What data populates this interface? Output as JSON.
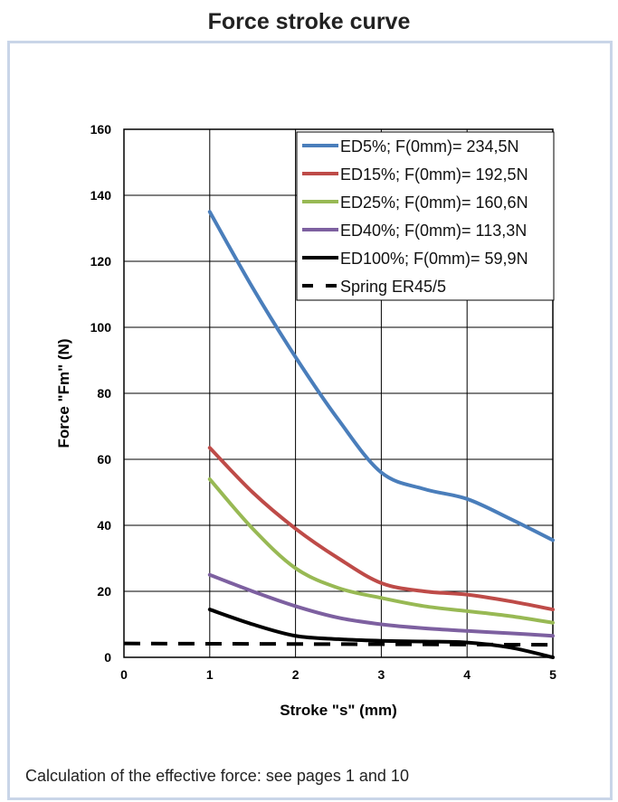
{
  "title": "Force stroke curve",
  "footer": "Calculation of the effective force: see pages 1 and 10",
  "chart_data": {
    "type": "line",
    "xlabel": "Stroke \"s\" (mm)",
    "ylabel": "Force \"Fm\" (N)",
    "xlim": [
      0,
      5
    ],
    "ylim": [
      0,
      160
    ],
    "xticks": [
      "0",
      "1",
      "2",
      "3",
      "4",
      "5"
    ],
    "yticks": [
      "0",
      "20",
      "40",
      "60",
      "80",
      "100",
      "120",
      "140",
      "160"
    ],
    "grid": true,
    "legend": "top-right",
    "x": [
      1,
      1.5,
      2,
      2.5,
      3,
      3.5,
      4,
      4.5,
      5
    ],
    "series": [
      {
        "name": "ED5%; F(0mm)= 234,5N",
        "color": "#4a7ebb",
        "values": [
          135,
          112,
          91,
          72,
          56,
          51,
          48,
          42,
          35.5
        ]
      },
      {
        "name": "ED15%; F(0mm)= 192,5N",
        "color": "#be4b48",
        "values": [
          63.5,
          50,
          39,
          30,
          22.5,
          20,
          19,
          17,
          14.5
        ]
      },
      {
        "name": "ED25%; F(0mm)= 160,6N",
        "color": "#98b954",
        "values": [
          54,
          39,
          27,
          21,
          18,
          15.5,
          14,
          12.5,
          10.5
        ]
      },
      {
        "name": "ED40%; F(0mm)= 113,3N",
        "color": "#7d60a0",
        "values": [
          25,
          20,
          15.5,
          12,
          10,
          8.8,
          8,
          7.3,
          6.5
        ]
      },
      {
        "name": "ED100%; F(0mm)= 59,9N",
        "color": "#000000",
        "values": [
          14.5,
          10,
          6.5,
          5.5,
          5,
          4.8,
          4.5,
          3,
          0
        ]
      },
      {
        "name": "Spring ER45/5",
        "color": "#000000",
        "dashed": true,
        "x": [
          0,
          5
        ],
        "values": [
          4.2,
          3.8
        ]
      }
    ]
  }
}
